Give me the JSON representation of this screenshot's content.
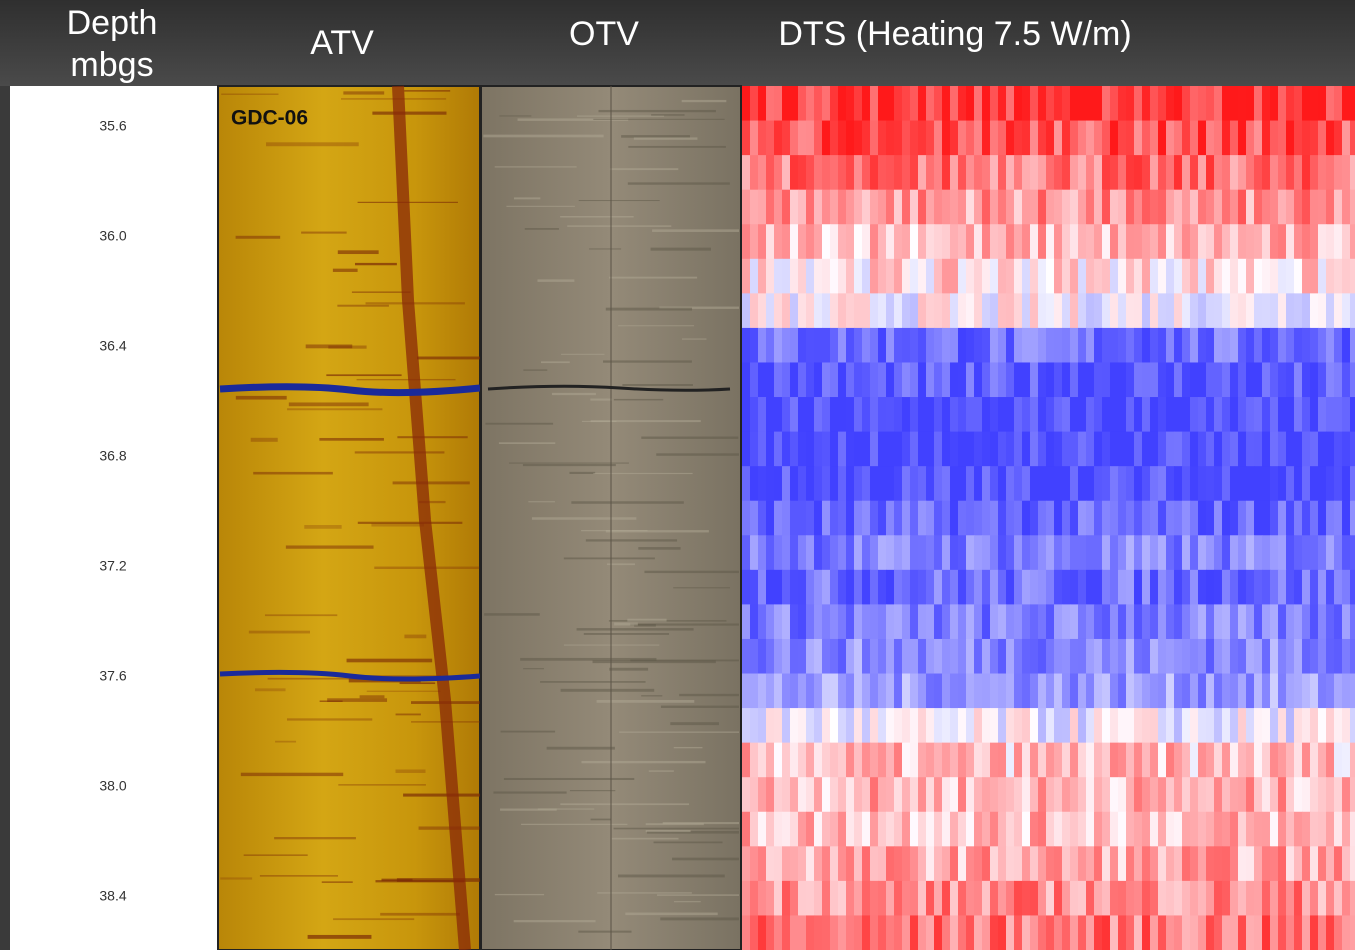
{
  "header": {
    "columns": [
      "Depth",
      "mbgs",
      "ATV",
      "OTV",
      "DTS (Heating 7.5 W/m)"
    ]
  },
  "depth_track": {
    "labels": [
      "35.6",
      "36.0",
      "36.4",
      "36.8",
      "37.2",
      "37.6",
      "38.0",
      "38.4"
    ]
  },
  "atv": {
    "well_label": "GDC-06"
  }
}
